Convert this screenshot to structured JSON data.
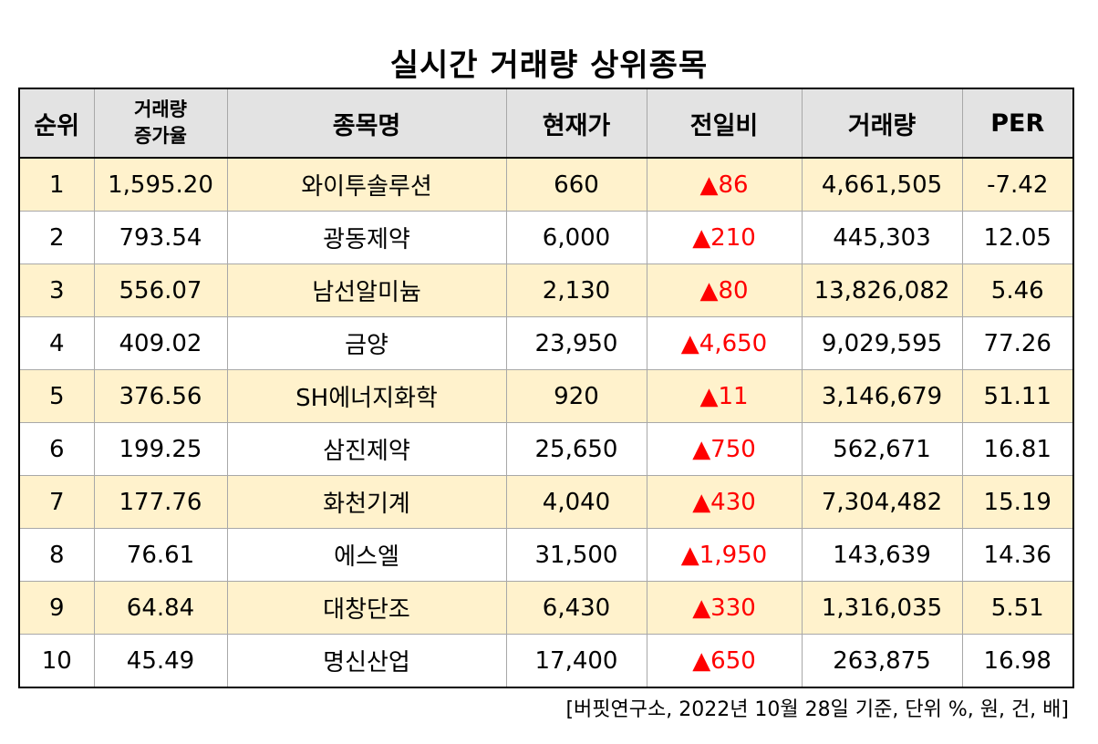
{
  "title": "실시간 거래량 상위종목",
  "header": {
    "rank": "순위",
    "rate_line1": "거래량",
    "rate_line2": "증가율",
    "name": "종목명",
    "price": "현재가",
    "change": "전일비",
    "volume": "거래량",
    "per": "PER"
  },
  "rows": [
    {
      "rank": "1",
      "rate": "1,595.20",
      "name": "와이투솔루션",
      "price": "660",
      "change": "▲86",
      "volume": "4,661,505",
      "per": "-7.42"
    },
    {
      "rank": "2",
      "rate": "793.54",
      "name": "광동제약",
      "price": "6,000",
      "change": "▲210",
      "volume": "445,303",
      "per": "12.05"
    },
    {
      "rank": "3",
      "rate": "556.07",
      "name": "남선알미늄",
      "price": "2,130",
      "change": "▲80",
      "volume": "13,826,082",
      "per": "5.46"
    },
    {
      "rank": "4",
      "rate": "409.02",
      "name": "금양",
      "price": "23,950",
      "change": "▲4,650",
      "volume": "9,029,595",
      "per": "77.26"
    },
    {
      "rank": "5",
      "rate": "376.56",
      "name": "SH에너지화학",
      "price": "920",
      "change": "▲11",
      "volume": "3,146,679",
      "per": "51.11"
    },
    {
      "rank": "6",
      "rate": "199.25",
      "name": "삼진제약",
      "price": "25,650",
      "change": "▲750",
      "volume": "562,671",
      "per": "16.81"
    },
    {
      "rank": "7",
      "rate": "177.76",
      "name": "화천기계",
      "price": "4,040",
      "change": "▲430",
      "volume": "7,304,482",
      "per": "15.19"
    },
    {
      "rank": "8",
      "rate": "76.61",
      "name": "에스엘",
      "price": "31,500",
      "change": "▲1,950",
      "volume": "143,639",
      "per": "14.36"
    },
    {
      "rank": "9",
      "rate": "64.84",
      "name": "대창단조",
      "price": "6,430",
      "change": "▲330",
      "volume": "1,316,035",
      "per": "5.51"
    },
    {
      "rank": "10",
      "rate": "45.49",
      "name": "명신산업",
      "price": "17,400",
      "change": "▲650",
      "volume": "263,875",
      "per": "16.98"
    }
  ],
  "footer": "[버핏연구소, 2022년 10월 28일 기준, 단위 %, 원, 건, 배]",
  "colors": {
    "header_bg": "#e3e3e3",
    "shaded_row_bg": "#fff2cc",
    "up_color": "#ff0000"
  }
}
